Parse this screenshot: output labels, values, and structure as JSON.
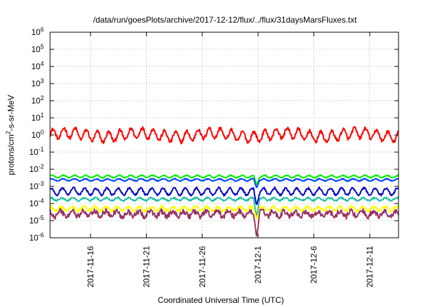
{
  "chart_data": {
    "type": "line",
    "title": "/data/run/goesPlots/archive/2017-12-12/flux/../flux/31daysMarsFluxes.txt",
    "xlabel": "Coordinated Universal Time (UTC)",
    "ylabel": "protons/cm²-s-sr-MeV",
    "yscale": "log",
    "ylim": [
      1e-06,
      1000000.0
    ],
    "xlim": [
      "2017-11-12T09:00",
      "2017-12-13T14:00"
    ],
    "grid": true,
    "y_ticks": [
      {
        "value": 1e-06,
        "base": "10",
        "exp": "-6"
      },
      {
        "value": 1e-05,
        "base": "10",
        "exp": "-5"
      },
      {
        "value": 0.0001,
        "base": "10",
        "exp": "-4"
      },
      {
        "value": 0.001,
        "base": "10",
        "exp": "-3"
      },
      {
        "value": 0.01,
        "base": "10",
        "exp": "-2"
      },
      {
        "value": 0.1,
        "base": "10",
        "exp": "-1"
      },
      {
        "value": 1,
        "base": "10",
        "exp": "0"
      },
      {
        "value": 10,
        "base": "10",
        "exp": "1"
      },
      {
        "value": 100,
        "base": "10",
        "exp": "2"
      },
      {
        "value": 1000,
        "base": "10",
        "exp": "3"
      },
      {
        "value": 10000,
        "base": "10",
        "exp": "4"
      },
      {
        "value": 100000,
        "base": "10",
        "exp": "5"
      },
      {
        "value": 1000000,
        "base": "10",
        "exp": "6"
      }
    ],
    "x_ticks": [
      {
        "date": "2017-11-16",
        "label": "2017-11-16"
      },
      {
        "date": "2017-11-21",
        "label": "2017-11-21"
      },
      {
        "date": "2017-11-26",
        "label": "2017-11-26"
      },
      {
        "date": "2017-12-01",
        "label": "2017-12-1"
      },
      {
        "date": "2017-12-06",
        "label": "2017-12-6"
      },
      {
        "date": "2017-12-11",
        "label": "2017-12-11"
      }
    ],
    "series": [
      {
        "color": "#ff0000",
        "base": 1.0,
        "amplitude": 0.3,
        "noise": 0.1,
        "period_days": 1.0,
        "dip": null
      },
      {
        "color": "#00ee00",
        "base": 0.0038,
        "amplitude": 0.07,
        "noise": 0.03,
        "period_days": 1.0,
        "dip": 0.0012
      },
      {
        "color": "#0044ff",
        "base": 0.0024,
        "amplitude": 0.06,
        "noise": 0.03,
        "period_days": 1.0,
        "dip": 0.0008
      },
      {
        "color": "#0000cc",
        "base": 0.0005,
        "amplitude": 0.2,
        "noise": 0.06,
        "period_days": 1.0,
        "dip": 8e-05
      },
      {
        "color": "#20c0a0",
        "base": 0.00018,
        "amplitude": 0.08,
        "noise": 0.05,
        "period_days": 1.0,
        "dip": 1.5e-05
      },
      {
        "color": "#ffff00",
        "base": 5e-05,
        "amplitude": 0.12,
        "noise": 0.08,
        "period_days": 1.0,
        "dip": 1.2e-05
      },
      {
        "color": "#993366",
        "base": 2.5e-05,
        "amplitude": 0.15,
        "noise": 0.16,
        "period_days": 1.0,
        "dip": 1e-06
      }
    ]
  }
}
